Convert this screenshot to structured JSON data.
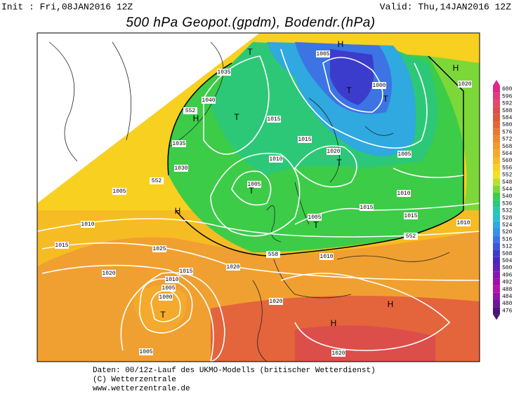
{
  "header": {
    "init": "Init : Fri,08JAN2016 12Z",
    "valid": "Valid: Thu,14JAN2016 12Z",
    "title": "500 hPa Geopot.(gpdm), Bodendr.(hPa)"
  },
  "legend": {
    "values": [
      600,
      596,
      592,
      588,
      584,
      580,
      576,
      572,
      568,
      564,
      560,
      556,
      552,
      548,
      544,
      540,
      536,
      532,
      528,
      524,
      520,
      516,
      512,
      508,
      504,
      500,
      496,
      492,
      488,
      484,
      480,
      476
    ],
    "colors": [
      "#e0288c",
      "#e23a7a",
      "#e04a66",
      "#dc4e4a",
      "#de5a3a",
      "#e2683a",
      "#e6783a",
      "#ec8a34",
      "#f09a30",
      "#f4aa2c",
      "#f6bc24",
      "#f8d020",
      "#f4e020",
      "#b8e030",
      "#7cd838",
      "#3ccc48",
      "#2cc878",
      "#28c8a8",
      "#28c0d0",
      "#30a8e0",
      "#3890e8",
      "#3c74e4",
      "#3c58d8",
      "#3c3ccc",
      "#4828c0",
      "#6420b8",
      "#8218b0",
      "#a010a8",
      "#b814a4",
      "#9018a8",
      "#6c1898",
      "#4a1478"
    ]
  },
  "map": {
    "labels": [
      "T",
      "H",
      "1005",
      "1000",
      "T",
      "T",
      "H",
      "1020",
      "1035",
      "1040",
      "552",
      "H",
      "T",
      "1035",
      "1030",
      "1015",
      "1010",
      "1015",
      "1020",
      "T",
      "1005",
      "1005",
      "T",
      "1010",
      "1015",
      "1005",
      "552",
      "H",
      "1010",
      "1015",
      "1025",
      "1005",
      "T",
      "1015",
      "1010",
      "552",
      "1020",
      "558",
      "1010",
      "1020",
      "1015",
      "1010",
      "1005",
      "1000",
      "T",
      "1020",
      "H",
      "H",
      "1005",
      "1020"
    ]
  },
  "footer": {
    "lines": [
      "Daten: 00/12z-Lauf des UKMO-Modells (britischer Wetterdienst)",
      "(C) Wetterzentrale",
      "www.wetterzentrale.de"
    ]
  }
}
